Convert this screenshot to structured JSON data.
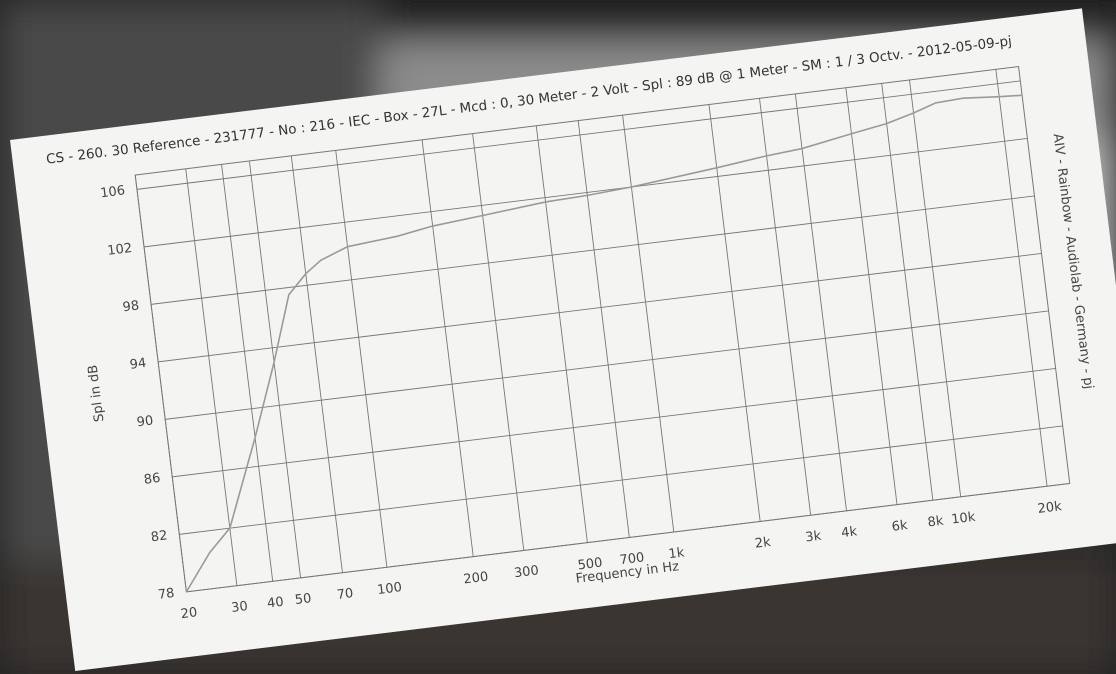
{
  "chart_data": {
    "type": "line",
    "title": "CS - 260. 30 Reference - 231777 - No : 216 - IEC - Box - 27L - Mcd : 0, 30 Meter - 2 Volt - Spl : 89 dB @ 1 Meter - SM : 1 / 3 Octv. - 2012-05-09-pj",
    "side_note": "AIV - Rainbow - Audiolab - Germany - pj",
    "x_label": "Frequency in Hz",
    "y_label": "Spl in dB",
    "x_log": true,
    "grid": true,
    "xlim": [
      20,
      24000
    ],
    "ylim": [
      78,
      107
    ],
    "xticks": [
      20,
      30,
      40,
      50,
      70,
      100,
      200,
      300,
      500,
      700,
      {
        "value": 1000,
        "label": "1k"
      },
      {
        "value": 2000,
        "label": "2k"
      },
      {
        "value": 3000,
        "label": "3k"
      },
      {
        "value": 4000,
        "label": "4k"
      },
      {
        "value": 6000,
        "label": "6k"
      },
      {
        "value": 8000,
        "label": "8k"
      },
      {
        "value": 10000,
        "label": "10k"
      },
      {
        "value": 20000,
        "label": "20k"
      }
    ],
    "yticks": [
      78,
      82,
      86,
      90,
      94,
      98,
      102,
      106
    ],
    "x": [
      20,
      25,
      30,
      40,
      50,
      60,
      70,
      80,
      100,
      150,
      200,
      300,
      500,
      700,
      1000,
      2000,
      3000,
      4000,
      6000,
      8000,
      10000,
      12000,
      15000,
      20000,
      24000
    ],
    "series": [
      {
        "color": "#9a9a9a",
        "values": [
          78,
          80.5,
          82,
          88,
          93,
          97.5,
          98.8,
          99.6,
          100.3,
          100.6,
          101,
          101.3,
          101.7,
          101.8,
          102,
          102.6,
          103,
          103.2,
          103.8,
          104.2,
          104.7,
          105.2,
          105.3,
          105.1,
          105
        ]
      }
    ]
  }
}
